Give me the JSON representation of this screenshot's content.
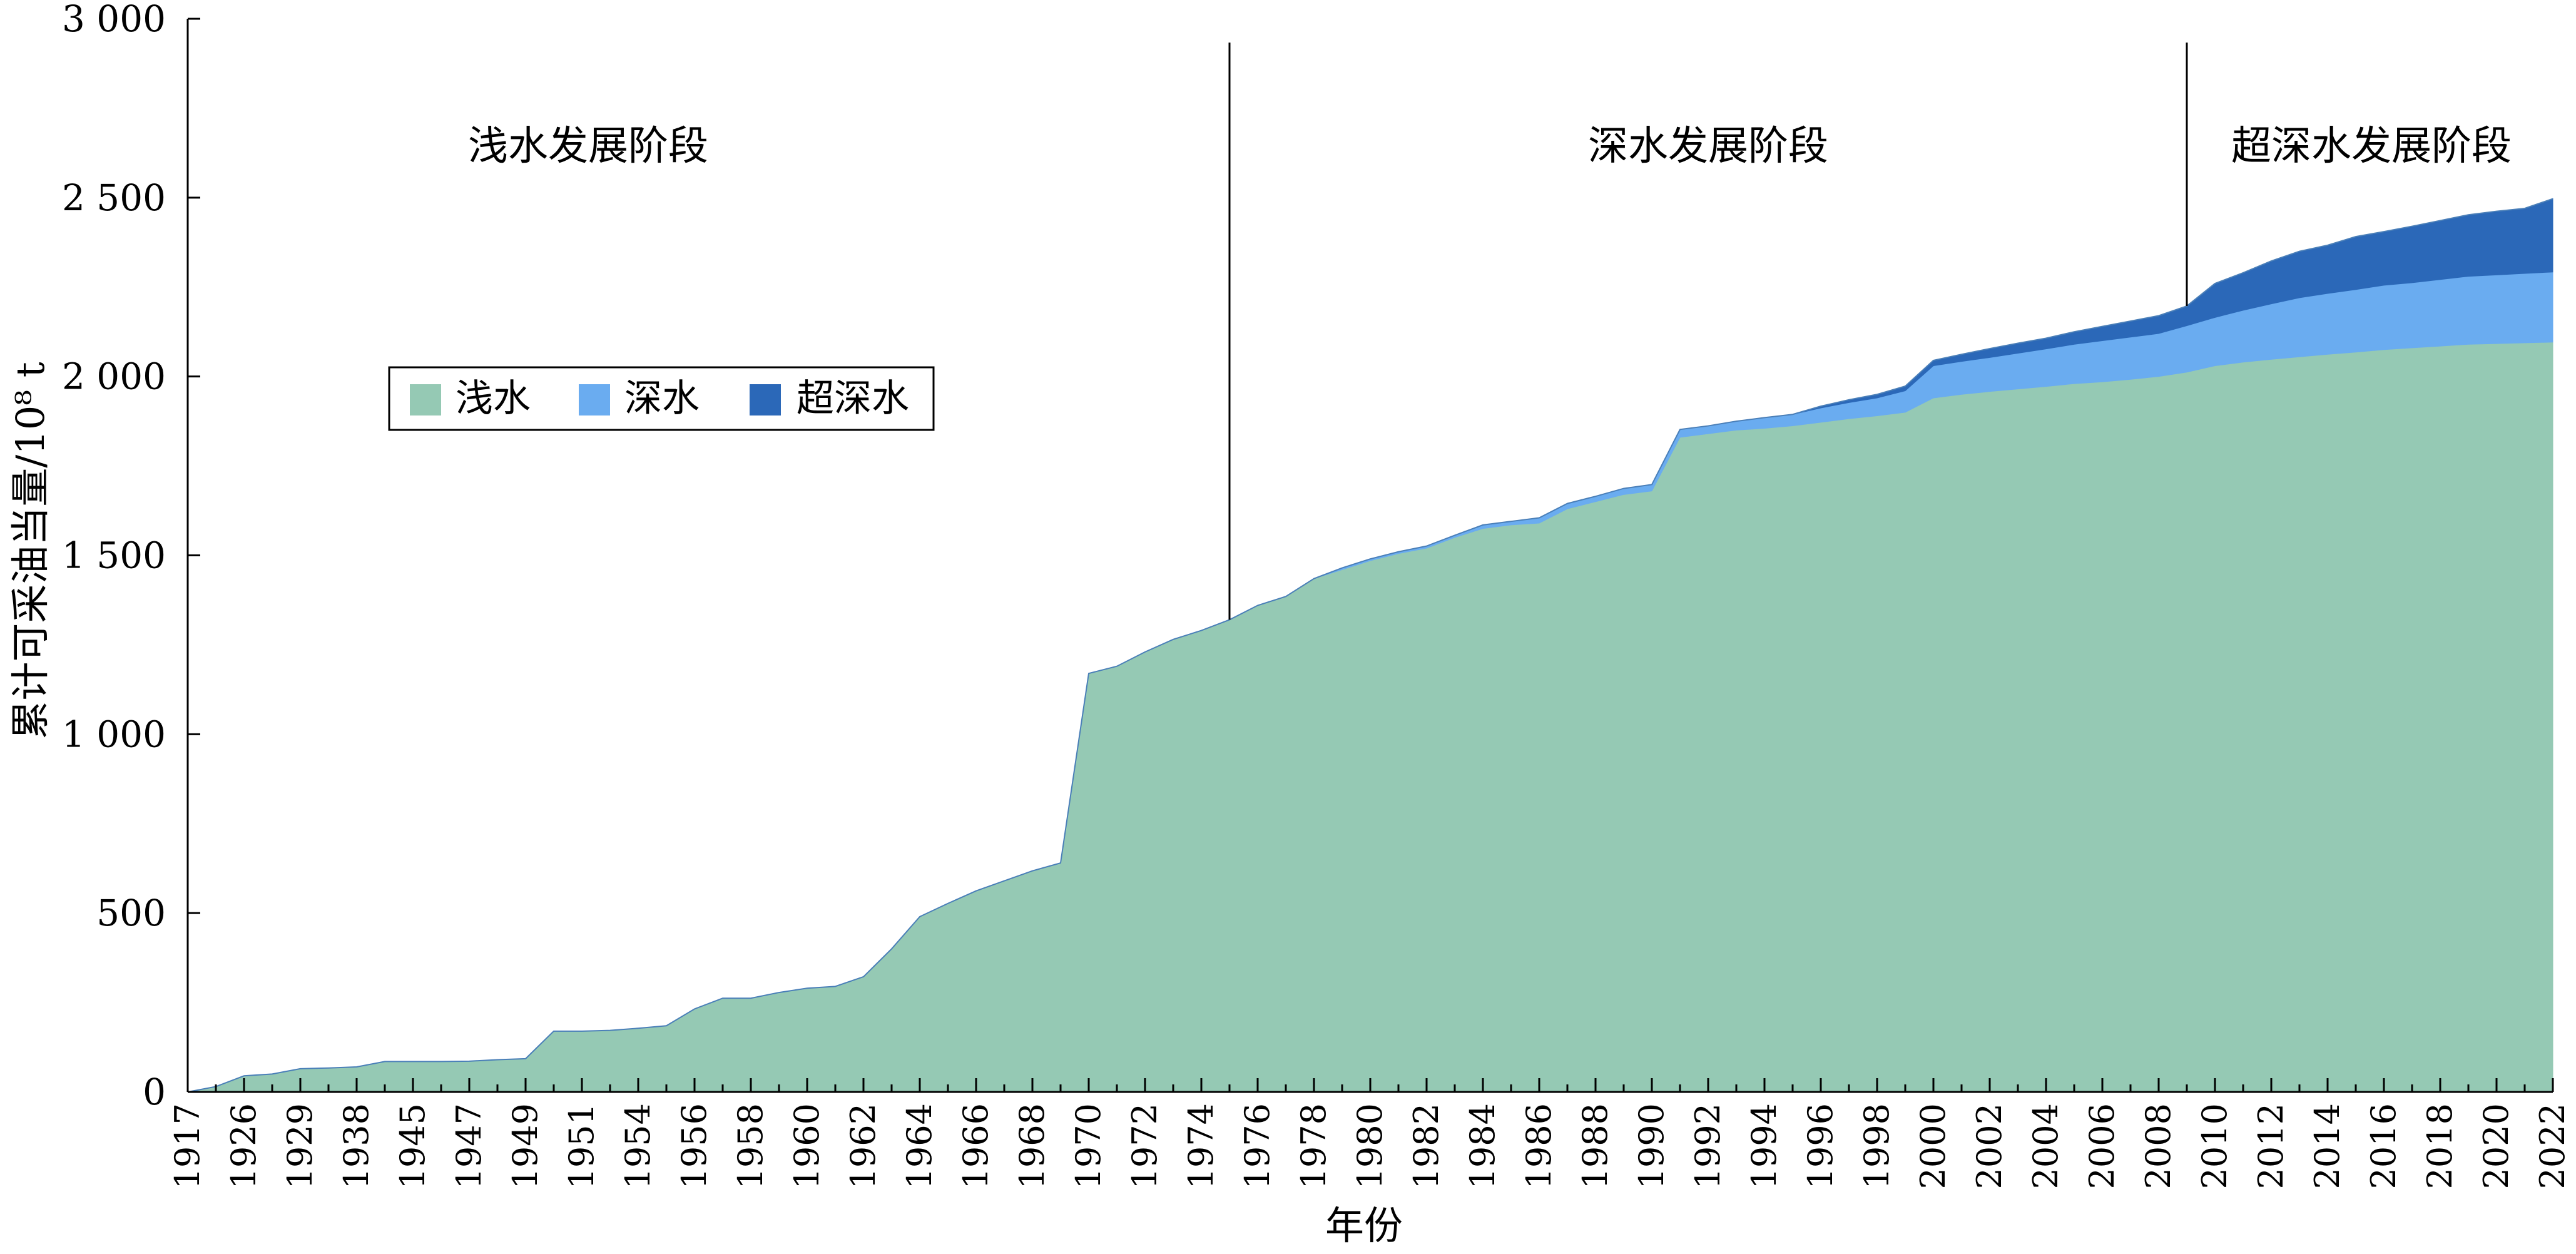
{
  "chart_data": {
    "type": "area",
    "stacked": true,
    "xlabel": "年份",
    "ylabel": "累计可采油当量/10⁸ t",
    "ylim": [
      0,
      3000
    ],
    "yticks": [
      0,
      500,
      1000,
      1500,
      2000,
      2500,
      3000
    ],
    "ytick_labels": [
      "0",
      "500",
      "1 000",
      "1 500",
      "2 000",
      "2 500",
      "3 000"
    ],
    "categories": [
      "1917",
      "1925",
      "1926",
      "1927",
      "1929",
      "1935",
      "1938",
      "1940",
      "1945",
      "1946",
      "1947",
      "1948",
      "1949",
      "1950",
      "1951",
      "1953",
      "1954",
      "1955",
      "1956",
      "1957",
      "1958",
      "1959",
      "1960",
      "1961",
      "1962",
      "1963",
      "1964",
      "1965",
      "1966",
      "1967",
      "1968",
      "1969",
      "1970",
      "1971",
      "1972",
      "1973",
      "1974",
      "1975",
      "1976",
      "1977",
      "1978",
      "1979",
      "1980",
      "1981",
      "1982",
      "1983",
      "1984",
      "1985",
      "1986",
      "1987",
      "1988",
      "1989",
      "1990",
      "1991",
      "1992",
      "1993",
      "1994",
      "1995",
      "1996",
      "1997",
      "1998",
      "1999",
      "2000",
      "2001",
      "2002",
      "2003",
      "2004",
      "2005",
      "2006",
      "2007",
      "2008",
      "2009",
      "2010",
      "2011",
      "2012",
      "2013",
      "2014",
      "2015",
      "2016",
      "2017",
      "2018",
      "2019",
      "2020",
      "2021",
      "2022"
    ],
    "xtick_labels": [
      "1917",
      "1926",
      "1929",
      "1938",
      "1945",
      "1947",
      "1949",
      "1951",
      "1954",
      "1956",
      "1958",
      "1960",
      "1962",
      "1964",
      "1966",
      "1968",
      "1970",
      "1972",
      "1974",
      "1976",
      "1978",
      "1980",
      "1982",
      "1984",
      "1986",
      "1988",
      "1990",
      "1992",
      "1994",
      "1996",
      "1998",
      "2000",
      "2002",
      "2004",
      "2006",
      "2008",
      "2010",
      "2012",
      "2014",
      "2016",
      "2018",
      "2020",
      "2022"
    ],
    "series": [
      {
        "name": "浅水",
        "color": "#95c9b4",
        "values": [
          0,
          15,
          45,
          50,
          65,
          67,
          70,
          85,
          85,
          85,
          86,
          90,
          93,
          170,
          170,
          172,
          178,
          185,
          232,
          262,
          262,
          278,
          290,
          295,
          322,
          400,
          490,
          527,
          562,
          590,
          618,
          640,
          1170,
          1190,
          1230,
          1265,
          1290,
          1320,
          1360,
          1385,
          1435,
          1460,
          1485,
          1505,
          1520,
          1550,
          1575,
          1585,
          1590,
          1630,
          1650,
          1670,
          1680,
          1830,
          1840,
          1850,
          1855,
          1862,
          1872,
          1882,
          1890,
          1900,
          1940,
          1950,
          1958,
          1965,
          1972,
          1980,
          1985,
          1992,
          2000,
          2012,
          2030,
          2040,
          2048,
          2055,
          2062,
          2068,
          2075,
          2080,
          2085,
          2090,
          2092,
          2094,
          2096
        ]
      },
      {
        "name": "深水",
        "color": "#6aacf0",
        "values": [
          0,
          0,
          0,
          0,
          0,
          0,
          0,
          0,
          0,
          0,
          0,
          0,
          0,
          0,
          0,
          0,
          0,
          0,
          0,
          0,
          0,
          0,
          0,
          0,
          0,
          0,
          0,
          0,
          0,
          0,
          0,
          0,
          0,
          0,
          0,
          0,
          0,
          0,
          0,
          0,
          0,
          5,
          5,
          5,
          6,
          6,
          10,
          10,
          15,
          15,
          15,
          17,
          18,
          22,
          22,
          25,
          30,
          32,
          40,
          45,
          50,
          60,
          90,
          92,
          95,
          100,
          105,
          110,
          115,
          118,
          120,
          130,
          135,
          145,
          155,
          165,
          170,
          175,
          180,
          182,
          186,
          190,
          192,
          194,
          196
        ]
      },
      {
        "name": "超深水",
        "color": "#2b68b8",
        "values": [
          0,
          0,
          0,
          0,
          0,
          0,
          0,
          0,
          0,
          0,
          0,
          0,
          0,
          0,
          0,
          0,
          0,
          0,
          0,
          0,
          0,
          0,
          0,
          0,
          0,
          0,
          0,
          0,
          0,
          0,
          0,
          0,
          0,
          0,
          0,
          0,
          0,
          0,
          0,
          0,
          0,
          0,
          0,
          0,
          0,
          0,
          0,
          0,
          0,
          0,
          0,
          0,
          0,
          0,
          0,
          0,
          0,
          0,
          5,
          8,
          10,
          13,
          15,
          20,
          25,
          28,
          30,
          35,
          40,
          45,
          50,
          55,
          95,
          105,
          120,
          130,
          135,
          148,
          150,
          158,
          165,
          172,
          178,
          182,
          205
        ]
      }
    ],
    "phase_dividers": [
      {
        "after_category": "1975"
      },
      {
        "after_category": "2009"
      }
    ],
    "annotations": [
      "浅水发展阶段",
      "深水发展阶段",
      "超深水发展阶段"
    ],
    "legend": {
      "position": "upper-left",
      "entries": [
        "浅水",
        "深水",
        "超深水"
      ]
    }
  }
}
